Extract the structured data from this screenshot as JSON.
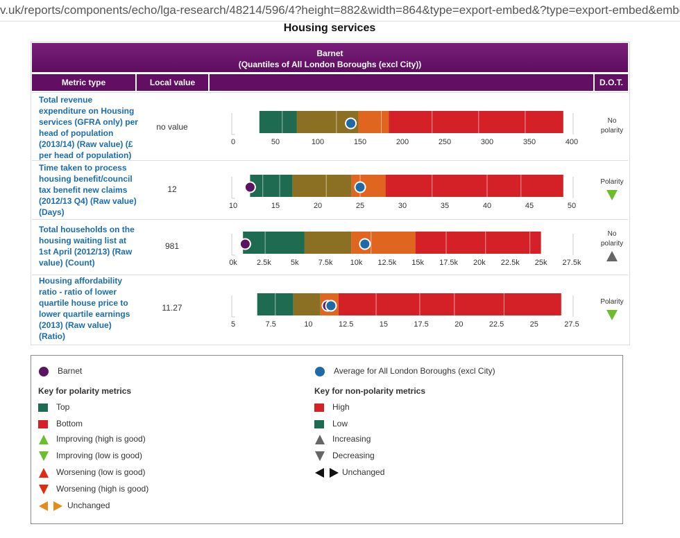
{
  "url": "v.uk/reports/components/echo/lga-research/48214/596/4?height=882&width=864&type=export-embed&?type=export-embed&embed-co",
  "title": "Housing services",
  "header": {
    "area": "Barnet",
    "comparison": "(Quantiles of All London Boroughs (excl City))"
  },
  "columns": {
    "metric": "Metric type",
    "local": "Local value",
    "dot": "D.O.T."
  },
  "colors": {
    "green": "#1e6b52",
    "olive": "#8b6f22",
    "orange": "#e0651f",
    "red": "#d42027",
    "purple": "#5b1460",
    "blue": "#1f6aa5",
    "header": "#620f63"
  },
  "rows": [
    {
      "metric": "Total revenue expenditure on Housing services (GFRA only) per head of population (2013/14) (Raw value) (£ per head of population)",
      "local": "no value",
      "dot": "No polarity",
      "dot_icon": "none"
    },
    {
      "metric": "Time taken to process housing benefit/council tax benefit new claims (2012/13 Q4) (Raw value) (Days)",
      "local": "12",
      "dot": "Polarity",
      "dot_icon": "green-down"
    },
    {
      "metric": "Total households on the housing waiting list at 1st April (2012/13) (Raw value) (Count)",
      "local": "981",
      "dot": "No polarity",
      "dot_icon": "grey-up"
    },
    {
      "metric": "Housing affordability ratio - ratio of lower quartile house price to lower quartile earnings (2013) (Raw value) (Ratio)",
      "local": "11.27",
      "dot": "Polarity",
      "dot_icon": "green-down"
    }
  ],
  "chart_data": [
    {
      "type": "bar",
      "title": "Total revenue expenditure on Housing services (GFRA only) per head of population (2013/14) (Raw value) (£ per head of population)",
      "xlim": [
        0,
        400
      ],
      "ticks": [
        0,
        50,
        100,
        150,
        200,
        250,
        300,
        350,
        400
      ],
      "tick_labels": [
        "0",
        "50",
        "100",
        "150",
        "200",
        "250",
        "300",
        "350",
        "400"
      ],
      "bands": [
        {
          "color": "green",
          "from": 31,
          "to": 75
        },
        {
          "color": "olive",
          "from": 75,
          "to": 148
        },
        {
          "color": "orange",
          "from": 148,
          "to": 184
        },
        {
          "color": "red",
          "from": 184,
          "to": 390
        }
      ],
      "dividers": [
        58,
        122,
        175,
        235,
        290,
        345
      ],
      "local": null,
      "average": 139
    },
    {
      "type": "bar",
      "title": "Time taken to process housing benefit/council tax benefit new claims (2012/13 Q4) (Raw value) (Days)",
      "xlim": [
        10,
        50
      ],
      "ticks": [
        10,
        15,
        20,
        25,
        30,
        35,
        40,
        45,
        50
      ],
      "tick_labels": [
        "10",
        "15",
        "20",
        "25",
        "30",
        "35",
        "40",
        "45",
        "50"
      ],
      "bands": [
        {
          "color": "green",
          "from": 12,
          "to": 17
        },
        {
          "color": "olive",
          "from": 17,
          "to": 24
        },
        {
          "color": "orange",
          "from": 24,
          "to": 28
        },
        {
          "color": "red",
          "from": 28,
          "to": 49
        }
      ],
      "dividers": [
        13.5,
        15.5,
        21,
        25,
        33.5,
        40,
        44
      ],
      "local": 12,
      "average": 25
    },
    {
      "type": "bar",
      "title": "Total households on the housing waiting list at 1st April (2012/13) (Raw value) (Count)",
      "xlim": [
        0,
        27500
      ],
      "ticks": [
        0,
        2500,
        5000,
        7500,
        10000,
        12500,
        15000,
        17500,
        20000,
        22500,
        25000,
        27500
      ],
      "tick_labels": [
        "0k",
        "2.5k",
        "5k",
        "7.5k",
        "10k",
        "12.5k",
        "15k",
        "17.5k",
        "20k",
        "22.5k",
        "25k",
        "27.5k"
      ],
      "bands": [
        {
          "color": "green",
          "from": 800,
          "to": 5800
        },
        {
          "color": "olive",
          "from": 5800,
          "to": 9600
        },
        {
          "color": "orange",
          "from": 9600,
          "to": 14800
        },
        {
          "color": "red",
          "from": 14800,
          "to": 25000
        }
      ],
      "dividers": [
        2600,
        11200,
        17300,
        20500,
        24100
      ],
      "local": 981,
      "average": 10700
    },
    {
      "type": "bar",
      "title": "Housing affordability ratio - ratio of lower quartile house price to lower quartile earnings (2013) (Raw value) (Ratio)",
      "xlim": [
        5,
        27.5
      ],
      "ticks": [
        5,
        7.5,
        10,
        12.5,
        15,
        17.5,
        20,
        22.5,
        25,
        27.5
      ],
      "tick_labels": [
        "5",
        "7.5",
        "10",
        "12.5",
        "15",
        "17.5",
        "20",
        "22.5",
        "25",
        "27.5"
      ],
      "bands": [
        {
          "color": "green",
          "from": 6.6,
          "to": 9
        },
        {
          "color": "olive",
          "from": 9,
          "to": 10.8
        },
        {
          "color": "orange",
          "from": 10.8,
          "to": 12
        },
        {
          "color": "red",
          "from": 12,
          "to": 26.8
        }
      ],
      "dividers": [
        7.8,
        14.5,
        17.4,
        19.7,
        23
      ],
      "local": 11.27,
      "average": 11.5
    }
  ],
  "key": {
    "barnet": "Barnet",
    "average": "Average for All London Boroughs (excl City)",
    "polarity_head": "Key for polarity metrics",
    "nonpolarity_head": "Key for non-polarity metrics",
    "top": "Top",
    "bottom": "Bottom",
    "improving_high": "Improving (high is good)",
    "improving_low": "Improving (low is good)",
    "worsening_low": "Worsening (low is good)",
    "worsening_high": "Worsening (high is good)",
    "unchanged": "Unchanged",
    "high": "High",
    "low": "Low",
    "increasing": "Increasing",
    "decreasing": "Decreasing",
    "unchanged2": "Unchanged"
  }
}
